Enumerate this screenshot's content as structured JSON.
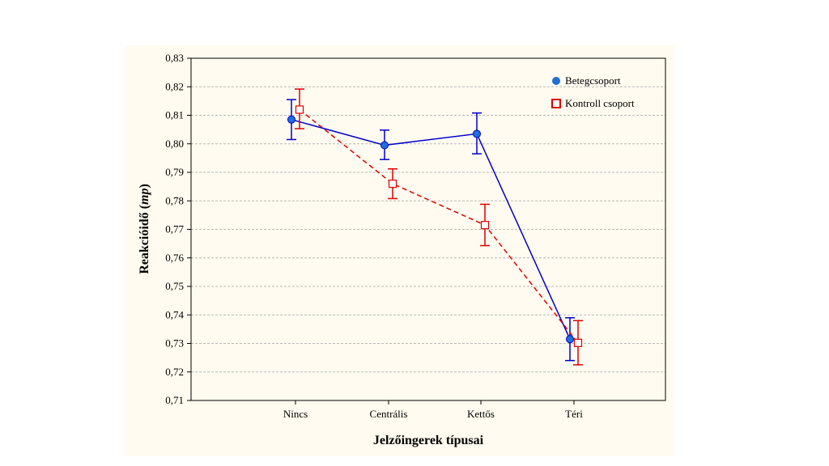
{
  "chart_data": {
    "type": "line",
    "xlabel": "Jelzőingerek típusai",
    "ylabel_main": "Reakcióidő (",
    "ylabel_unit": "mp",
    "ylabel_close": ")",
    "ylim": [
      0.71,
      0.83
    ],
    "yticks": [
      "0,71",
      "0,72",
      "0,73",
      "0,74",
      "0,75",
      "0,76",
      "0,77",
      "0,78",
      "0,79",
      "0,80",
      "0,81",
      "0,82",
      "0,83"
    ],
    "categories": [
      "Nincs",
      "Centrális",
      "Kettős",
      "Téri"
    ],
    "grid": "horizontal-dashed",
    "legend_position": "top-right",
    "series": [
      {
        "name": "Betegcsoport",
        "color": "#0000cc",
        "marker_color": "#1f6fd6",
        "marker": "filled-circle",
        "line": "solid",
        "values": [
          0.8085,
          0.7995,
          0.8035,
          0.7315
        ],
        "err_low": [
          0.8015,
          0.7945,
          0.7965,
          0.724
        ],
        "err_high": [
          0.8155,
          0.8048,
          0.8108,
          0.739
        ]
      },
      {
        "name": "Kontroll csoport",
        "color": "#dd0000",
        "marker_color": "#dd0000",
        "marker": "open-square",
        "line": "dashed",
        "values": [
          0.812,
          0.786,
          0.7715,
          0.7302
        ],
        "err_low": [
          0.8053,
          0.7808,
          0.7643,
          0.7225
        ],
        "err_high": [
          0.8192,
          0.7912,
          0.7788,
          0.738
        ]
      }
    ]
  }
}
